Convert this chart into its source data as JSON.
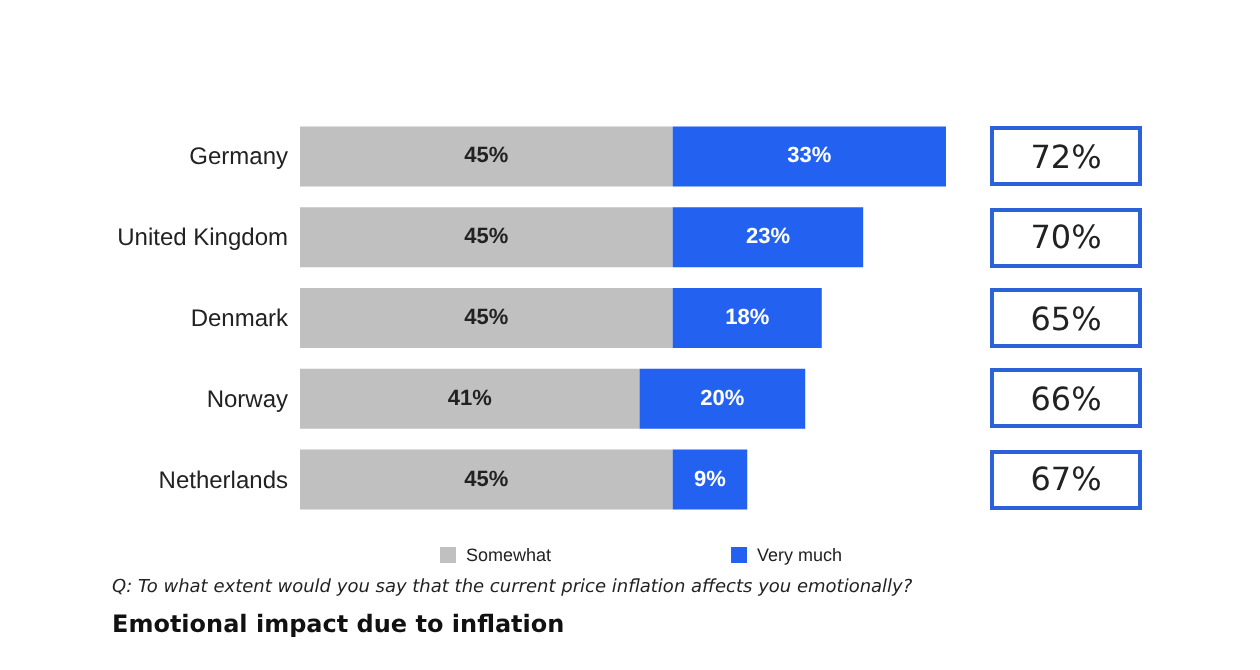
{
  "chart_data": {
    "type": "bar",
    "orientation": "horizontal",
    "stacked": true,
    "title": "Emotional impact due to inflation",
    "annotations": [
      "Q: To what extent would you say that the current price inflation affects you emotionally?",
      "72%",
      "70%",
      "65%",
      "66%",
      "67%"
    ],
    "categories": [
      "Germany",
      "United Kingdom",
      "Denmark",
      "Norway",
      "Netherlands"
    ],
    "series": [
      {
        "name": "Somewhat",
        "color": "#c0c0c0",
        "values": [
          45,
          45,
          45,
          41,
          45
        ],
        "value_labels": [
          "45%",
          "45%",
          "45%",
          "41%",
          "45%"
        ]
      },
      {
        "name": "Very much",
        "color": "#2362f0",
        "values": [
          33,
          23,
          18,
          20,
          9
        ],
        "value_labels": [
          "33%",
          "23%",
          "18%",
          "20%",
          "9%"
        ]
      }
    ],
    "xlim": [
      0,
      78
    ],
    "tick_labels": "y",
    "grid": false,
    "legend": "bottom"
  }
}
